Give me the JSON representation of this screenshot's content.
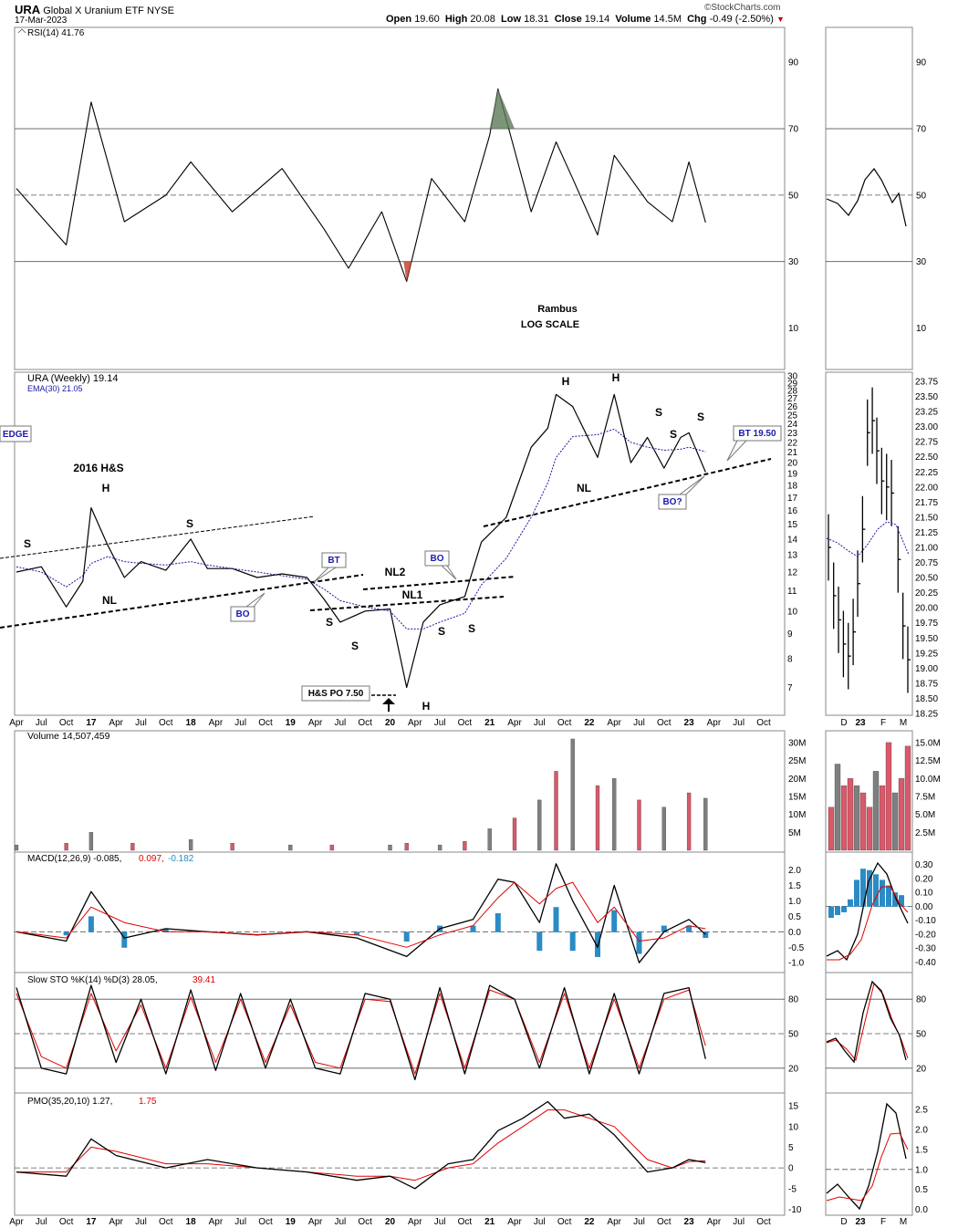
{
  "header": {
    "ticker": "URA",
    "name": "Global X Uranium ETF",
    "exchange": "NYSE",
    "date": "17-Mar-2023",
    "open_label": "Open",
    "open": "19.60",
    "high_label": "High",
    "high": "20.08",
    "low_label": "Low",
    "low": "18.31",
    "close_label": "Close",
    "close": "19.14",
    "volume_label": "Volume",
    "volume": "14.5M",
    "chg_label": "Chg",
    "chg": "-0.49 (-2.50%)",
    "down_icon": "triangle-down-icon",
    "brand": "©StockCharts.com"
  },
  "colors": {
    "price": "#000000",
    "ema": "#1a1aa0",
    "signal": "#e00000",
    "hist": "#2b8bc4",
    "vol_up": "#7f7f7f",
    "vol_down": "#d9596a",
    "rsi_fill_high": "#5b7a58",
    "rsi_fill_low": "#c0392b",
    "grid": "#555555",
    "note_blue": "#1a1ab0"
  },
  "panels": {
    "rsi": {
      "legend": "RSI(14) 41.76",
      "ticks": [
        "90",
        "70",
        "50",
        "30",
        "10"
      ],
      "overlay_lines": [
        "Rambus",
        "LOG SCALE"
      ]
    },
    "price": {
      "legend_name": "URA (Weekly) 19.14",
      "legend_ema": "EMA(30) 21.05",
      "ticks": [
        "30",
        "29",
        "28",
        "27",
        "26",
        "25",
        "24",
        "23",
        "22",
        "21",
        "20",
        "19",
        "18",
        "17",
        "16",
        "15",
        "14",
        "13",
        "12",
        "11",
        "10",
        "9",
        "8",
        "7"
      ],
      "inset_ticks": [
        "23.75",
        "23.50",
        "23.25",
        "23.00",
        "22.75",
        "22.50",
        "22.25",
        "22.00",
        "21.75",
        "21.50",
        "21.25",
        "21.00",
        "20.75",
        "20.50",
        "20.25",
        "20.00",
        "19.75",
        "19.50",
        "19.25",
        "19.00",
        "18.75",
        "18.50",
        "18.25"
      ]
    },
    "volume": {
      "legend": "Volume 14,507,459",
      "ticks": [
        "30M",
        "25M",
        "20M",
        "15M",
        "10M",
        "5M"
      ],
      "inset_ticks": [
        "15.0M",
        "12.5M",
        "10.0M",
        "7.5M",
        "5.0M",
        "2.5M"
      ]
    },
    "macd": {
      "legend_prefix": "MACD(12,26,9) -0.085,",
      "legend_signal": "0.097,",
      "legend_hist": "-0.182",
      "ticks": [
        "2.0",
        "1.5",
        "1.0",
        "0.5",
        "0.0",
        "-0.5",
        "-1.0"
      ],
      "inset_ticks": [
        "0.30",
        "0.20",
        "0.10",
        "0.00",
        "-0.10",
        "-0.20",
        "-0.30",
        "-0.40"
      ]
    },
    "sto": {
      "legend_prefix": "Slow STO %K(14) %D(3) 28.05,",
      "legend_d": "39.41",
      "ticks": [
        "80",
        "50",
        "20"
      ]
    },
    "pmo": {
      "legend_prefix": "PMO(35,20,10) 1.27,",
      "legend_signal": "1.75",
      "ticks": [
        "15",
        "10",
        "5",
        "0",
        "-5",
        "-10"
      ],
      "inset_ticks": [
        "2.5",
        "2.0",
        "1.5",
        "1.0",
        "0.5",
        "0.0"
      ]
    }
  },
  "x_axis": {
    "labels": [
      "Apr",
      "Jul",
      "Oct",
      "17",
      "Apr",
      "Jul",
      "Oct",
      "18",
      "Apr",
      "Jul",
      "Oct",
      "19",
      "Apr",
      "Jul",
      "Oct",
      "20",
      "Apr",
      "Jul",
      "Oct",
      "21",
      "Apr",
      "Jul",
      "Oct",
      "22",
      "Apr",
      "Jul",
      "Oct",
      "23",
      "Apr",
      "Jul",
      "Oct"
    ],
    "inset_labels": [
      "D",
      "23",
      "F",
      "M"
    ]
  },
  "annotations": {
    "hs2016": "2016 H&S",
    "h": "H",
    "s": "S",
    "nl": "NL",
    "nl1": "NL1",
    "nl2": "NL2",
    "bt": "BT",
    "bo": "BO",
    "bo_q": "BO?",
    "bt_level": "BT 19.50",
    "edge": "EDGE",
    "hs_po": "H&S PO 7.50"
  },
  "chart_data": {
    "type": "line",
    "title": "URA Global X Uranium ETF (Weekly, log scale)",
    "period": [
      "2016-04",
      "2023-03"
    ],
    "ohlc_last": {
      "open": 19.6,
      "high": 20.08,
      "low": 18.31,
      "close": 19.14,
      "volume": 14507459
    },
    "price_ylim": [
      6.2,
      30
    ],
    "price_scale": "log",
    "price_dates": [
      "2016-04",
      "2016-07",
      "2016-10",
      "2016-12",
      "2017-01",
      "2017-03",
      "2017-05",
      "2017-07",
      "2017-10",
      "2018-01",
      "2018-03",
      "2018-06",
      "2018-09",
      "2018-12",
      "2019-03",
      "2019-05",
      "2019-07",
      "2019-10",
      "2020-01",
      "2020-03",
      "2020-05",
      "2020-07",
      "2020-10",
      "2020-12",
      "2021-03",
      "2021-06",
      "2021-08",
      "2021-09",
      "2021-11",
      "2022-02",
      "2022-04",
      "2022-06",
      "2022-08",
      "2022-10",
      "2022-12",
      "2023-01",
      "2023-03"
    ],
    "price_close": [
      12.0,
      12.3,
      10.2,
      11.5,
      16.2,
      13.6,
      11.7,
      12.6,
      12.1,
      14.0,
      12.2,
      12.2,
      11.7,
      11.9,
      11.7,
      10.6,
      9.5,
      10.0,
      10.1,
      7.0,
      9.5,
      10.3,
      10.7,
      13.8,
      15.5,
      21.5,
      23.5,
      27.5,
      26.0,
      20.5,
      27.5,
      20.0,
      22.5,
      19.5,
      22.5,
      23.0,
      19.14
    ],
    "ema30_close": [
      12.3,
      12.0,
      11.2,
      11.8,
      12.5,
      12.9,
      12.6,
      12.5,
      12.4,
      12.6,
      12.4,
      12.2,
      12.0,
      11.8,
      11.6,
      11.1,
      10.5,
      10.2,
      10.0,
      9.2,
      9.2,
      9.5,
      9.9,
      11.3,
      12.8,
      15.5,
      18.2,
      20.5,
      22.6,
      22.8,
      23.4,
      22.0,
      21.5,
      21.2,
      21.3,
      21.5,
      21.05
    ],
    "inset_dates": [
      "2022-11-25",
      "2022-12-02",
      "2022-12-09",
      "2022-12-16",
      "2022-12-23",
      "2022-12-30",
      "2023-01-06",
      "2023-01-13",
      "2023-01-20",
      "2023-01-27",
      "2023-02-03",
      "2023-02-10",
      "2023-02-17",
      "2023-02-24",
      "2023-03-03",
      "2023-03-10",
      "2023-03-17"
    ],
    "inset_close": [
      21.0,
      20.2,
      19.8,
      19.4,
      19.2,
      19.6,
      20.4,
      21.3,
      22.9,
      23.1,
      22.6,
      22.1,
      22.0,
      21.9,
      20.8,
      19.7,
      19.14
    ],
    "inset_ylim": [
      18.25,
      23.75
    ],
    "rsi": {
      "dates": [
        "2016-04",
        "2016-10",
        "2017-01",
        "2017-05",
        "2017-10",
        "2018-01",
        "2018-06",
        "2018-12",
        "2019-05",
        "2019-08",
        "2019-12",
        "2020-03",
        "2020-06",
        "2020-10",
        "2021-01",
        "2021-02",
        "2021-06",
        "2021-09",
        "2021-11",
        "2022-02",
        "2022-04",
        "2022-08",
        "2022-11",
        "2023-01",
        "2023-03"
      ],
      "values": [
        52,
        35,
        78,
        42,
        50,
        60,
        45,
        58,
        40,
        28,
        45,
        24,
        55,
        42,
        68,
        82,
        45,
        66,
        55,
        38,
        62,
        48,
        42,
        60,
        41.76
      ],
      "ylim": [
        0,
        100
      ],
      "last": 41.76
    },
    "volume": {
      "dates": [
        "2016-04",
        "2016-10",
        "2017-01",
        "2017-06",
        "2018-01",
        "2018-06",
        "2019-01",
        "2019-06",
        "2020-01",
        "2020-03",
        "2020-07",
        "2020-10",
        "2021-01",
        "2021-04",
        "2021-07",
        "2021-09",
        "2021-11",
        "2022-02",
        "2022-04",
        "2022-07",
        "2022-10",
        "2023-01",
        "2023-03"
      ],
      "values": [
        1.5,
        2.0,
        5.0,
        2.0,
        3.0,
        2.0,
        1.5,
        1.5,
        1.5,
        2.0,
        1.5,
        2.5,
        6.0,
        9.0,
        14.0,
        22.0,
        31.0,
        18.0,
        20.0,
        14.0,
        12.0,
        16.0,
        14.5
      ],
      "units": "millions",
      "ylim": [
        0,
        32
      ]
    },
    "macd": {
      "dates": [
        "2016-04",
        "2016-10",
        "2017-01",
        "2017-05",
        "2017-10",
        "2018-03",
        "2018-09",
        "2019-03",
        "2019-09",
        "2020-03",
        "2020-07",
        "2020-11",
        "2021-02",
        "2021-04",
        "2021-07",
        "2021-09",
        "2021-11",
        "2022-02",
        "2022-04",
        "2022-07",
        "2022-10",
        "2023-01",
        "2023-03"
      ],
      "macd": [
        0.0,
        -0.3,
        1.3,
        -0.2,
        0.1,
        0.0,
        -0.1,
        0.0,
        -0.2,
        -0.8,
        0.1,
        0.4,
        1.7,
        1.6,
        0.3,
        2.2,
        1.0,
        -0.5,
        1.5,
        -1.0,
        0.0,
        0.4,
        -0.085
      ],
      "signal": [
        0.0,
        -0.2,
        0.8,
        0.3,
        0.0,
        0.0,
        -0.1,
        0.0,
        -0.1,
        -0.5,
        -0.1,
        0.2,
        1.1,
        1.6,
        0.9,
        1.4,
        1.6,
        0.3,
        0.8,
        -0.3,
        -0.2,
        0.2,
        0.097
      ],
      "ylim": [
        -1.2,
        2.4
      ]
    },
    "sto": {
      "dates": [
        "2016-04",
        "2016-07",
        "2016-10",
        "2017-01",
        "2017-04",
        "2017-07",
        "2017-10",
        "2018-01",
        "2018-04",
        "2018-07",
        "2018-10",
        "2019-01",
        "2019-04",
        "2019-07",
        "2019-10",
        "2020-01",
        "2020-04",
        "2020-07",
        "2020-10",
        "2021-01",
        "2021-04",
        "2021-07",
        "2021-10",
        "2022-01",
        "2022-04",
        "2022-07",
        "2022-10",
        "2023-01",
        "2023-03"
      ],
      "k": [
        90,
        20,
        15,
        92,
        25,
        80,
        15,
        88,
        18,
        85,
        20,
        80,
        20,
        15,
        85,
        80,
        10,
        90,
        15,
        92,
        80,
        20,
        90,
        15,
        85,
        15,
        85,
        90,
        28.05
      ],
      "d": [
        85,
        30,
        20,
        85,
        35,
        75,
        20,
        82,
        25,
        80,
        25,
        75,
        25,
        20,
        80,
        78,
        15,
        85,
        20,
        88,
        80,
        25,
        85,
        20,
        80,
        20,
        80,
        88,
        39.41
      ],
      "ylim": [
        0,
        100
      ]
    },
    "pmo": {
      "dates": [
        "2016-04",
        "2016-10",
        "2017-01",
        "2017-04",
        "2017-10",
        "2018-03",
        "2018-09",
        "2019-03",
        "2019-09",
        "2020-01",
        "2020-04",
        "2020-08",
        "2020-11",
        "2021-02",
        "2021-05",
        "2021-08",
        "2021-10",
        "2022-01",
        "2022-04",
        "2022-08",
        "2022-11",
        "2023-01",
        "2023-03"
      ],
      "pmo": [
        -1,
        -2,
        7,
        3,
        0,
        2,
        0,
        -1,
        -3,
        -2,
        -5,
        1,
        2,
        9,
        12,
        16,
        12,
        13,
        8,
        -1,
        0,
        2,
        1.27
      ],
      "signal": [
        -1,
        -1,
        5,
        4,
        1,
        1,
        0,
        -1,
        -2,
        -2,
        -3,
        0,
        1,
        6,
        10,
        14,
        14,
        12,
        10,
        2,
        0,
        1.5,
        1.75
      ],
      "ylim": [
        -11,
        17
      ]
    }
  }
}
